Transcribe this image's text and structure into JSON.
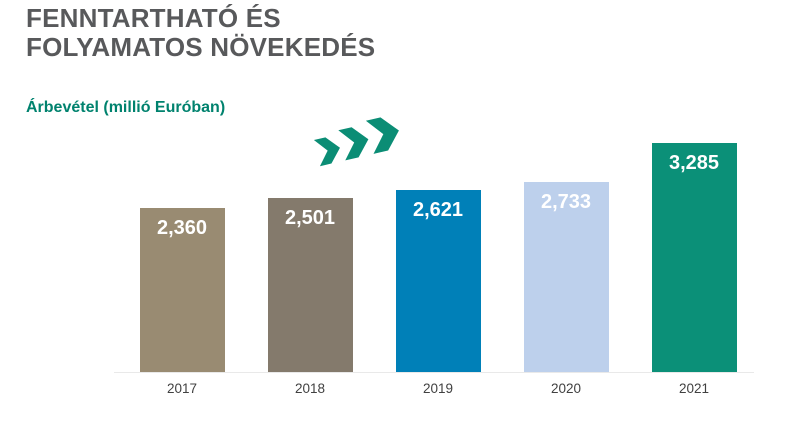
{
  "header": {
    "title_line1": "FENNTARTHATÓ ÉS",
    "title_line2": "FOLYAMATOS NÖVEKEDÉS",
    "title_color": "#58595b"
  },
  "chart_data": {
    "type": "bar",
    "title": "Árbevétel (millió Euróban)",
    "xlabel": "",
    "ylabel": "",
    "categories": [
      "2017",
      "2018",
      "2019",
      "2020",
      "2021"
    ],
    "values": [
      2360,
      2501,
      2621,
      2733,
      3285
    ],
    "value_labels": [
      "2,360",
      "2,501",
      "2,621",
      "2,733",
      "3,285"
    ],
    "bar_colors": [
      "#998b72",
      "#847a6c",
      "#0080b8",
      "#bdd0ec",
      "#0b9078"
    ],
    "ylim": [
      0,
      3400
    ],
    "grid": false,
    "legend": false,
    "value_label_color": "#ffffff",
    "axis_label_color": "#414141",
    "baseline_color": "#e9e9e9"
  },
  "icons": {
    "growth_chevrons": {
      "name": "triple-chevron-right",
      "color": "#0b8d75"
    }
  },
  "colors": {
    "background": "#ffffff",
    "subtitle": "#00826e"
  }
}
